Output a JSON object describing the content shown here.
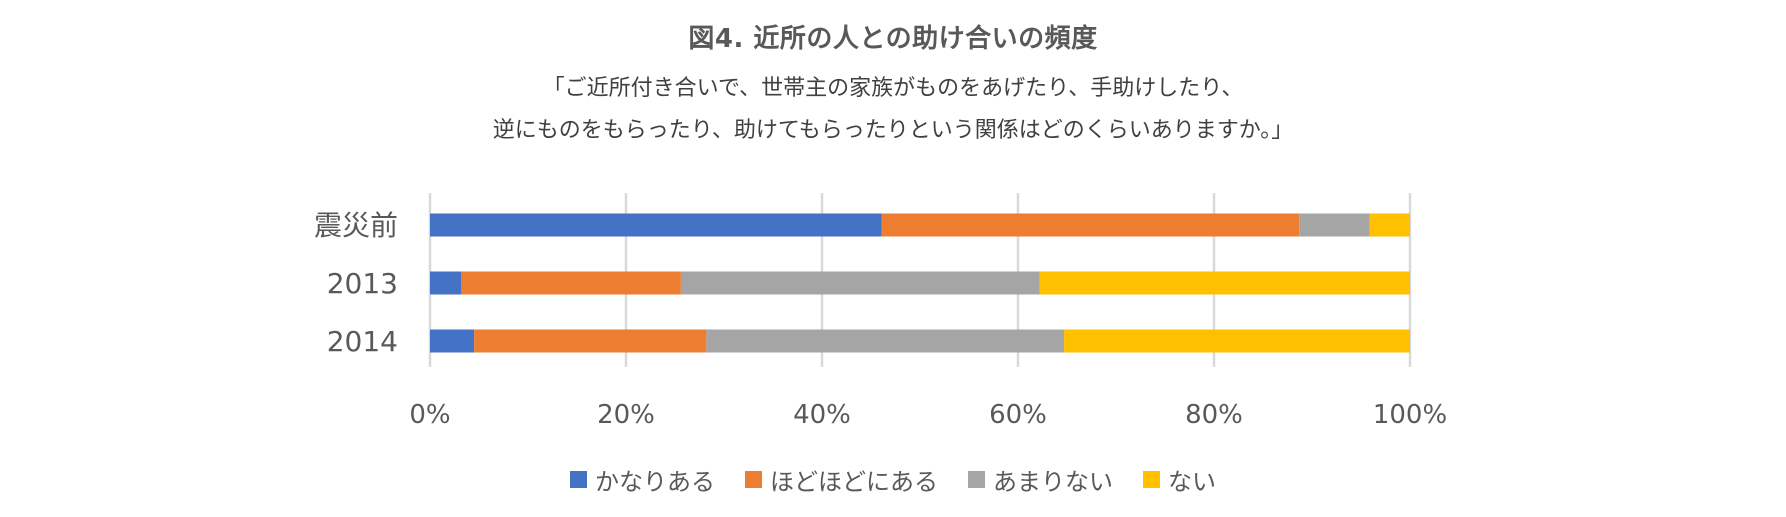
{
  "title": "図4. 近所の人との助け合いの頻度",
  "subtitle_line1": "「ご近所付き合いで、世帯主の家族がものをあげたり、手助けしたり、",
  "subtitle_line2": "逆にものをもらったり、助けてもらったりという関係はどのくらいありますか。」",
  "chart_data": {
    "type": "bar",
    "orientation": "horizontal",
    "stacked": "percent",
    "categories": [
      "震災前",
      "2013",
      "2014"
    ],
    "series": [
      {
        "name": "かなりある",
        "color": "#4472C4",
        "values": [
          46.1,
          3.2,
          4.5
        ]
      },
      {
        "name": "ほどほどにある",
        "color": "#ED7D31",
        "values": [
          42.6,
          22.4,
          23.7
        ]
      },
      {
        "name": "あまりない",
        "color": "#A5A5A5",
        "values": [
          7.2,
          36.6,
          36.5
        ]
      },
      {
        "name": "ない",
        "color": "#FFC000",
        "values": [
          4.1,
          37.8,
          35.3
        ]
      }
    ],
    "xlim": [
      0,
      100
    ],
    "xticks": [
      "0%",
      "20%",
      "40%",
      "60%",
      "80%",
      "100%"
    ],
    "grid": true,
    "legend_position": "bottom"
  }
}
